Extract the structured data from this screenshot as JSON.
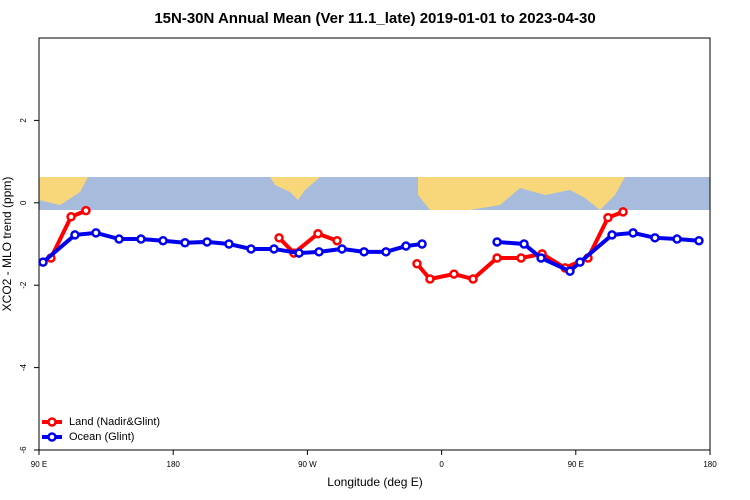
{
  "chart_data": {
    "type": "line",
    "title": "15N-30N Annual Mean (Ver 11.1_late)   2019-01-01 to 2023-04-30",
    "x_label": "Longitude (deg E)",
    "y_label": "XCO2 - MLO trend (ppm)",
    "xlim": [
      90,
      540
    ],
    "ylim": [
      -6,
      4
    ],
    "xticks": [
      {
        "value": 90,
        "label": "90 E"
      },
      180,
      {
        "value": 270,
        "label": "90 W"
      },
      {
        "value": 360,
        "label": "0"
      },
      {
        "value": 450,
        "label": "90 E"
      },
      {
        "value": 540,
        "label": "180"
      }
    ],
    "yticks": [
      -6,
      -4,
      -2,
      0,
      2
    ],
    "legend": "bottom-left",
    "series": [
      {
        "name": "Land (Nadir&Glint)",
        "color": "#ff0000",
        "x": [
          98.0,
          111.5,
          121.5,
          null,
          251.0,
          261.0,
          277.1,
          289.9,
          null,
          343.5,
          352.2,
          368.3,
          381.1,
          397.2,
          413.3,
          427.4,
          442.8,
          458.2,
          471.6,
          481.7
        ],
        "values": [
          -1.34,
          -0.34,
          -0.19,
          null,
          -0.85,
          -1.22,
          -0.75,
          -0.92,
          null,
          -1.48,
          -1.85,
          -1.73,
          -1.85,
          -1.34,
          -1.34,
          -1.24,
          -1.58,
          -1.34,
          -0.36,
          -0.22
        ]
      },
      {
        "name": "Ocean (Glint)",
        "color": "#0000ee",
        "x": [
          92.7,
          114.1,
          128.2,
          143.7,
          158.4,
          173.2,
          187.9,
          202.7,
          217.4,
          232.2,
          247.6,
          264.4,
          277.8,
          293.2,
          308.0,
          322.7,
          336.1,
          346.9,
          null,
          397.2,
          415.3,
          426.7,
          446.1,
          452.8,
          474.3,
          488.4,
          503.1,
          517.9,
          532.6
        ],
        "values": [
          -1.44,
          -0.78,
          -0.73,
          -0.88,
          -0.88,
          -0.92,
          -0.97,
          -0.95,
          -1.0,
          -1.12,
          -1.12,
          -1.22,
          -1.19,
          -1.12,
          -1.19,
          -1.19,
          -1.05,
          -1.0,
          null,
          -0.95,
          -1.0,
          -1.34,
          -1.66,
          -1.44,
          -0.78,
          -0.73,
          -0.85,
          -0.88,
          -0.92
        ]
      }
    ]
  }
}
